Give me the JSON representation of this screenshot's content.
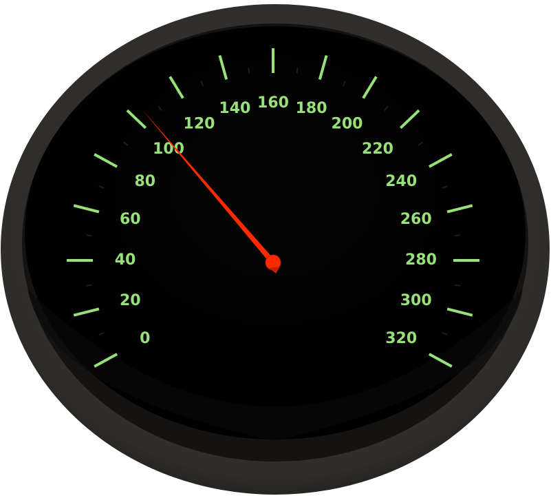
{
  "gauge": {
    "min": 0,
    "max": 320,
    "major_step": 20,
    "labels": [
      "0",
      "20",
      "40",
      "60",
      "80",
      "100",
      "120",
      "140",
      "160",
      "180",
      "200",
      "220",
      "240",
      "260",
      "280",
      "300",
      "320"
    ],
    "needle_value": 104,
    "colors": {
      "bezel_outer": "#2d2b28",
      "bezel_inner": "#1e1d1b",
      "face": "#000000",
      "tick": "#98e07a",
      "label": "#98e07a",
      "needle": "#ff2a00",
      "needle_hub": "#ff2a00"
    }
  }
}
